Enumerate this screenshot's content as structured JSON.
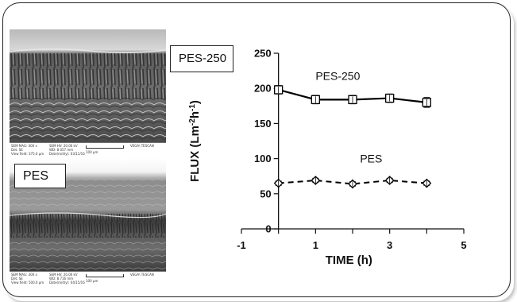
{
  "chart_data": {
    "type": "line",
    "xlabel": "TIME (h)",
    "ylabel": "FLUX (Lm-2h-1)",
    "xlim": [
      -1,
      5
    ],
    "ylim": [
      0,
      250
    ],
    "xticks": [
      "-1",
      "1",
      "3",
      "5"
    ],
    "yticks": [
      "0",
      "50",
      "100",
      "150",
      "200",
      "250"
    ],
    "series": [
      {
        "name": "PES-250",
        "line_style": "solid",
        "marker": "square",
        "x": [
          0,
          1,
          2,
          3,
          4
        ],
        "y": [
          198,
          184,
          184,
          186,
          180
        ],
        "error": [
          6,
          6,
          6,
          6,
          7
        ]
      },
      {
        "name": "PES",
        "line_style": "dashed",
        "marker": "diamond",
        "x": [
          0,
          1,
          2,
          3,
          4
        ],
        "y": [
          65,
          69,
          64,
          69,
          65
        ],
        "error": [
          3,
          3,
          3,
          3,
          3
        ]
      }
    ],
    "annotations": [
      "PES-250",
      "PES"
    ],
    "legend": "none",
    "grid": false
  },
  "labels": {
    "chart_box": "PES-250",
    "sem_box": "PES"
  },
  "sem_top": {
    "col1": [
      "SEM MAG: 400 x",
      "Det: SE",
      "View field: 375.0 µm"
    ],
    "col2": [
      "SEM HV: 20.00 kV",
      "WD: 8.057 mm",
      "Date(m/d/y): 03/11/16"
    ],
    "scale": "100 µm",
    "brand": "VEGA\\ TESCAN"
  },
  "sem_bottom": {
    "col1": [
      "SEM MAG: 300 x",
      "Det: SE",
      "View field: 500.0 µm"
    ],
    "col2": [
      "SEM HV: 20.00 kV",
      "WD: 8.716 mm",
      "Date(m/d/y): 04/15/16"
    ],
    "scale": "100 µm",
    "brand": "VEGA\\ TESCAN"
  }
}
